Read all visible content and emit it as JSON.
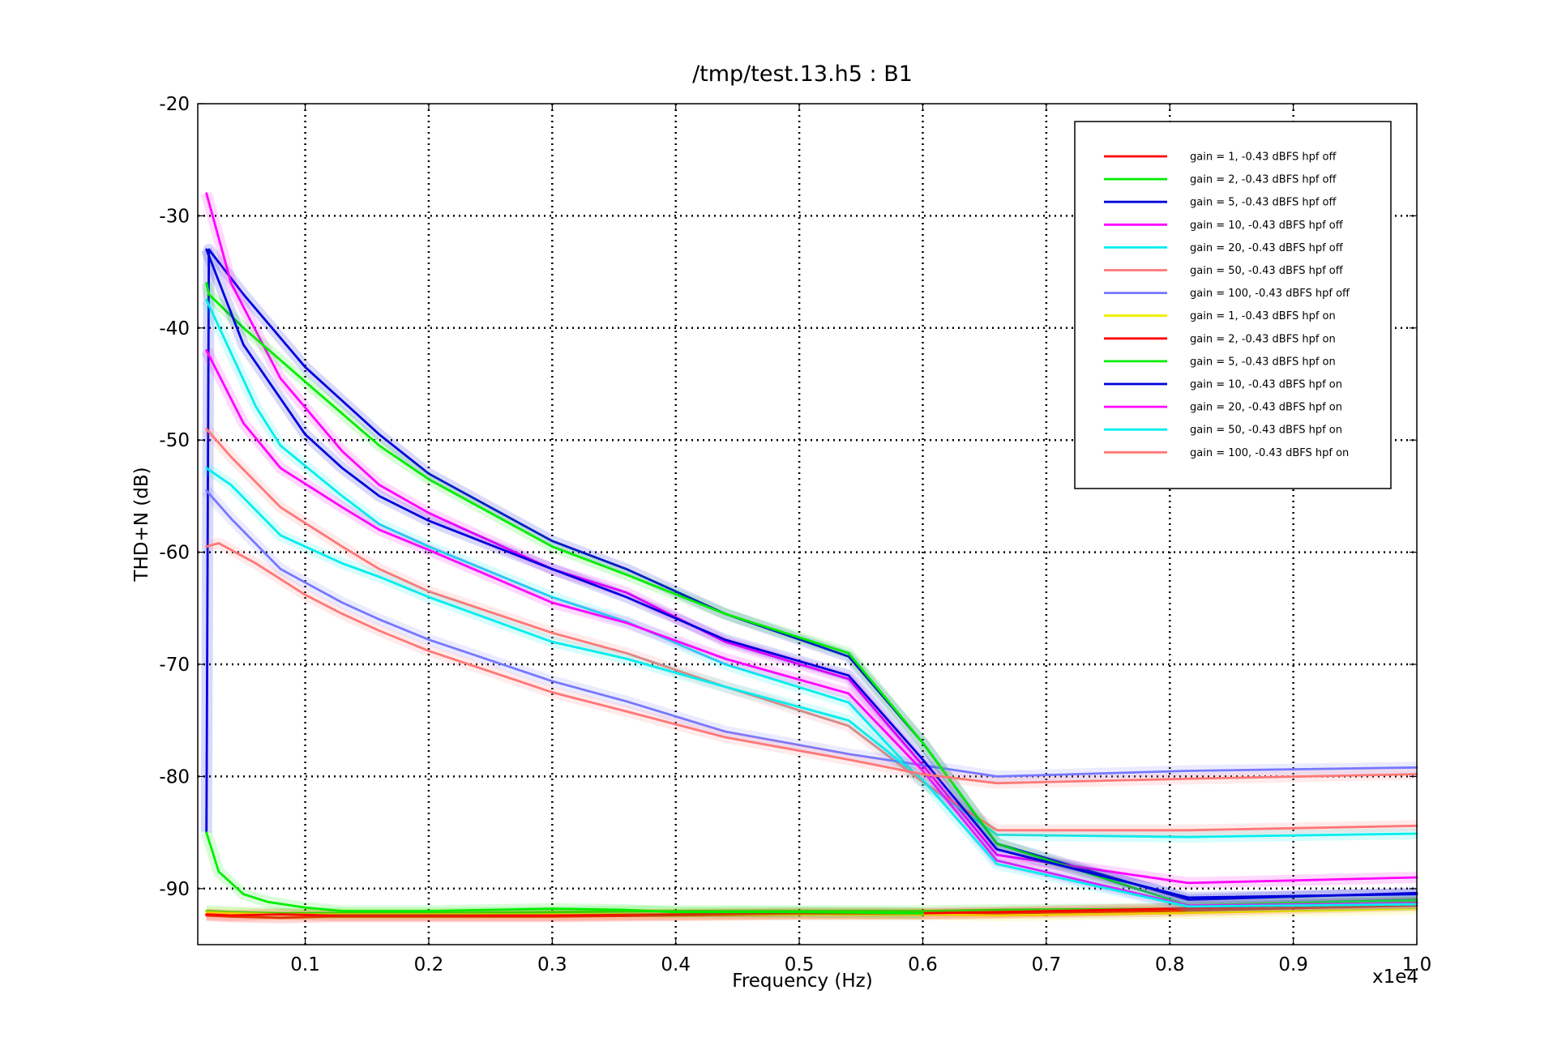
{
  "chart_data": {
    "type": "line",
    "title": "/tmp/test.13.h5 : B1",
    "xlabel": "Frequency (Hz)",
    "ylabel": "THD+N (dB)",
    "x_multiplier_label": "x1e4",
    "xlim": [
      0.013,
      1.0
    ],
    "ylim": [
      -95,
      -20
    ],
    "x_ticks": [
      0.1,
      0.2,
      0.3,
      0.4,
      0.5,
      0.6,
      0.7,
      0.8,
      0.9,
      1.0
    ],
    "x_tick_labels": [
      "0.1",
      "0.2",
      "0.3",
      "0.4",
      "0.5",
      "0.6",
      "0.7",
      "0.8",
      "0.9",
      "1.0"
    ],
    "y_ticks": [
      -20,
      -30,
      -40,
      -50,
      -60,
      -70,
      -80,
      -90
    ],
    "y_tick_labels": [
      "-20",
      "-30",
      "-40",
      "-50",
      "-60",
      "-70",
      "-80",
      "-90"
    ],
    "grid": true,
    "legend_position": "top-right",
    "series": [
      {
        "name": "gain = 1, -0.43 dBFS  hpf off",
        "color": "#ff0000",
        "x": [
          0.02,
          0.04,
          0.08,
          0.12,
          0.2,
          0.3,
          0.4,
          0.5,
          0.6,
          0.66,
          0.8,
          1.0
        ],
        "y": [
          -92.4,
          -92.5,
          -92.6,
          -92.5,
          -92.5,
          -92.5,
          -92.4,
          -92.3,
          -92.3,
          -92.2,
          -92.0,
          -91.5
        ]
      },
      {
        "name": "gain = 2, -0.43 dBFS  hpf off",
        "color": "#00ee00",
        "x": [
          0.02,
          0.04,
          0.08,
          0.12,
          0.2,
          0.3,
          0.4,
          0.5,
          0.6,
          0.66,
          0.8,
          1.0
        ],
        "y": [
          -92.0,
          -92.1,
          -92.2,
          -92.2,
          -92.2,
          -92.1,
          -92.0,
          -92.0,
          -92.0,
          -91.9,
          -91.8,
          -91.2
        ]
      },
      {
        "name": "gain = 5, -0.43 dBFS  hpf off",
        "color": "#0000dd",
        "x": [
          0.02,
          0.022,
          0.05,
          0.1,
          0.16,
          0.2,
          0.3,
          0.36,
          0.44,
          0.54,
          0.6,
          0.66,
          0.815,
          1.0
        ],
        "y": [
          -85,
          -33,
          -37,
          -43.5,
          -49.5,
          -53,
          -59,
          -61.5,
          -65.5,
          -69.3,
          -77,
          -86,
          -91,
          -90.4
        ]
      },
      {
        "name": "gain = 10, -0.43 dBFS  hpf off",
        "color": "#ff00ff",
        "x": [
          0.02,
          0.04,
          0.08,
          0.13,
          0.16,
          0.2,
          0.3,
          0.36,
          0.44,
          0.54,
          0.6,
          0.66,
          0.815,
          1.0
        ],
        "y": [
          -28,
          -36,
          -44.5,
          -51,
          -54,
          -56.5,
          -61.5,
          -63.6,
          -68,
          -71.3,
          -79,
          -87,
          -89.5,
          -89
        ]
      },
      {
        "name": "gain = 20, -0.43 dBFS  hpf off",
        "color": "#00eeee",
        "x": [
          0.02,
          0.06,
          0.08,
          0.13,
          0.16,
          0.2,
          0.3,
          0.36,
          0.44,
          0.54,
          0.6,
          0.66,
          0.815,
          1.0
        ],
        "y": [
          -37.5,
          -47,
          -50.5,
          -55,
          -57.5,
          -59.5,
          -64,
          -66.2,
          -70,
          -73.4,
          -80.5,
          -85.2,
          -85.4,
          -85.1
        ]
      },
      {
        "name": "gain = 50, -0.43 dBFS  hpf off",
        "color": "#ff7777",
        "x": [
          0.02,
          0.04,
          0.08,
          0.13,
          0.16,
          0.2,
          0.3,
          0.36,
          0.44,
          0.54,
          0.6,
          0.66,
          0.815,
          1.0
        ],
        "y": [
          -49,
          -51.5,
          -56,
          -59.5,
          -61.5,
          -63.5,
          -67.2,
          -69,
          -72,
          -75.5,
          -80.5,
          -84.8,
          -84.8,
          -84.4
        ]
      },
      {
        "name": "gain = 100, -0.43 dBFS  hpf off",
        "color": "#7777ff",
        "x": [
          0.02,
          0.04,
          0.08,
          0.13,
          0.16,
          0.2,
          0.3,
          0.36,
          0.44,
          0.54,
          0.6,
          0.66,
          0.815,
          1.0
        ],
        "y": [
          -54.5,
          -57,
          -61.5,
          -64.5,
          -66,
          -67.8,
          -71.5,
          -73.3,
          -76,
          -78,
          -79,
          -80,
          -79.5,
          -79.2
        ]
      },
      {
        "name": "gain = 1, -0.43 dBFS  hpf on",
        "color": "#eeee00",
        "x": [
          0.02,
          0.04,
          0.08,
          0.12,
          0.2,
          0.3,
          0.4,
          0.5,
          0.6,
          0.66,
          0.8,
          1.0
        ],
        "y": [
          -92.1,
          -92.2,
          -92.3,
          -92.3,
          -92.3,
          -92.3,
          -92.3,
          -92.3,
          -92.3,
          -92.4,
          -92.2,
          -91.8
        ]
      },
      {
        "name": "gain = 2, -0.43 dBFS  hpf on",
        "color": "#ff0000",
        "x": [
          0.02,
          0.04,
          0.08,
          0.12,
          0.2,
          0.3,
          0.4,
          0.5,
          0.6,
          0.66,
          0.8,
          1.0
        ],
        "y": [
          -92.3,
          -92.4,
          -92.3,
          -92.4,
          -92.4,
          -92.4,
          -92.3,
          -92.2,
          -92.2,
          -92.1,
          -91.8,
          -91.3
        ]
      },
      {
        "name": "gain = 5, -0.43 dBFS  hpf on",
        "color": "#00ee00",
        "x": [
          0.02,
          0.022,
          0.05,
          0.1,
          0.16,
          0.2,
          0.3,
          0.36,
          0.44,
          0.54,
          0.6,
          0.66,
          0.815,
          1.0
        ],
        "y": [
          -36,
          -37,
          -40,
          -44.8,
          -50.5,
          -53.5,
          -59.5,
          -62,
          -65.5,
          -69,
          -77,
          -86,
          -91.5,
          -91
        ]
      },
      {
        "name": "gain = 10, -0.43 dBFS  hpf on",
        "color": "#0000dd",
        "x": [
          0.02,
          0.05,
          0.1,
          0.13,
          0.16,
          0.2,
          0.3,
          0.36,
          0.44,
          0.54,
          0.6,
          0.66,
          0.815,
          1.0
        ],
        "y": [
          -33,
          -41.5,
          -49.5,
          -52.5,
          -55,
          -57.2,
          -61.5,
          -64,
          -67.8,
          -71,
          -78.5,
          -86.5,
          -90.8,
          -90.5
        ]
      },
      {
        "name": "gain = 20, -0.43 dBFS  hpf on",
        "color": "#ff00ff",
        "x": [
          0.02,
          0.05,
          0.08,
          0.13,
          0.16,
          0.2,
          0.3,
          0.36,
          0.44,
          0.54,
          0.6,
          0.66,
          0.815,
          1.0
        ],
        "y": [
          -42,
          -48.5,
          -52.5,
          -56,
          -58,
          -59.8,
          -64.5,
          -66.3,
          -69.5,
          -72.6,
          -79.5,
          -87.5,
          -91.5,
          -91.3
        ]
      },
      {
        "name": "gain = 50, -0.43 dBFS  hpf on",
        "color": "#00eeee",
        "x": [
          0.02,
          0.04,
          0.08,
          0.13,
          0.16,
          0.2,
          0.3,
          0.36,
          0.44,
          0.54,
          0.6,
          0.66,
          0.815,
          1.0
        ],
        "y": [
          -52.5,
          -54,
          -58.5,
          -61,
          -62.2,
          -64,
          -68,
          -69.5,
          -72,
          -75,
          -80.3,
          -87.8,
          -91.6,
          -91.4
        ]
      },
      {
        "name": "gain = 100, -0.43 dBFS  hpf on",
        "color": "#ff7777",
        "x": [
          0.02,
          0.03,
          0.06,
          0.1,
          0.13,
          0.16,
          0.2,
          0.3,
          0.36,
          0.44,
          0.54,
          0.6,
          0.66,
          0.815,
          1.0
        ],
        "y": [
          -59.5,
          -59.2,
          -61,
          -63.8,
          -65.5,
          -67,
          -68.8,
          -72.5,
          -74.2,
          -76.5,
          -78.5,
          -79.8,
          -80.6,
          -80.2,
          -79.8
        ]
      },
      {
        "name": "",
        "color": "#00ee00",
        "x": [
          0.02,
          0.03,
          0.05,
          0.07,
          0.1,
          0.13,
          0.2,
          0.3,
          0.36,
          0.4,
          0.5,
          0.6
        ],
        "y": [
          -85,
          -88.5,
          -90.5,
          -91.2,
          -91.7,
          -92.0,
          -92.0,
          -91.8,
          -91.9,
          -92.1,
          -92.1,
          -92.2
        ]
      }
    ]
  }
}
